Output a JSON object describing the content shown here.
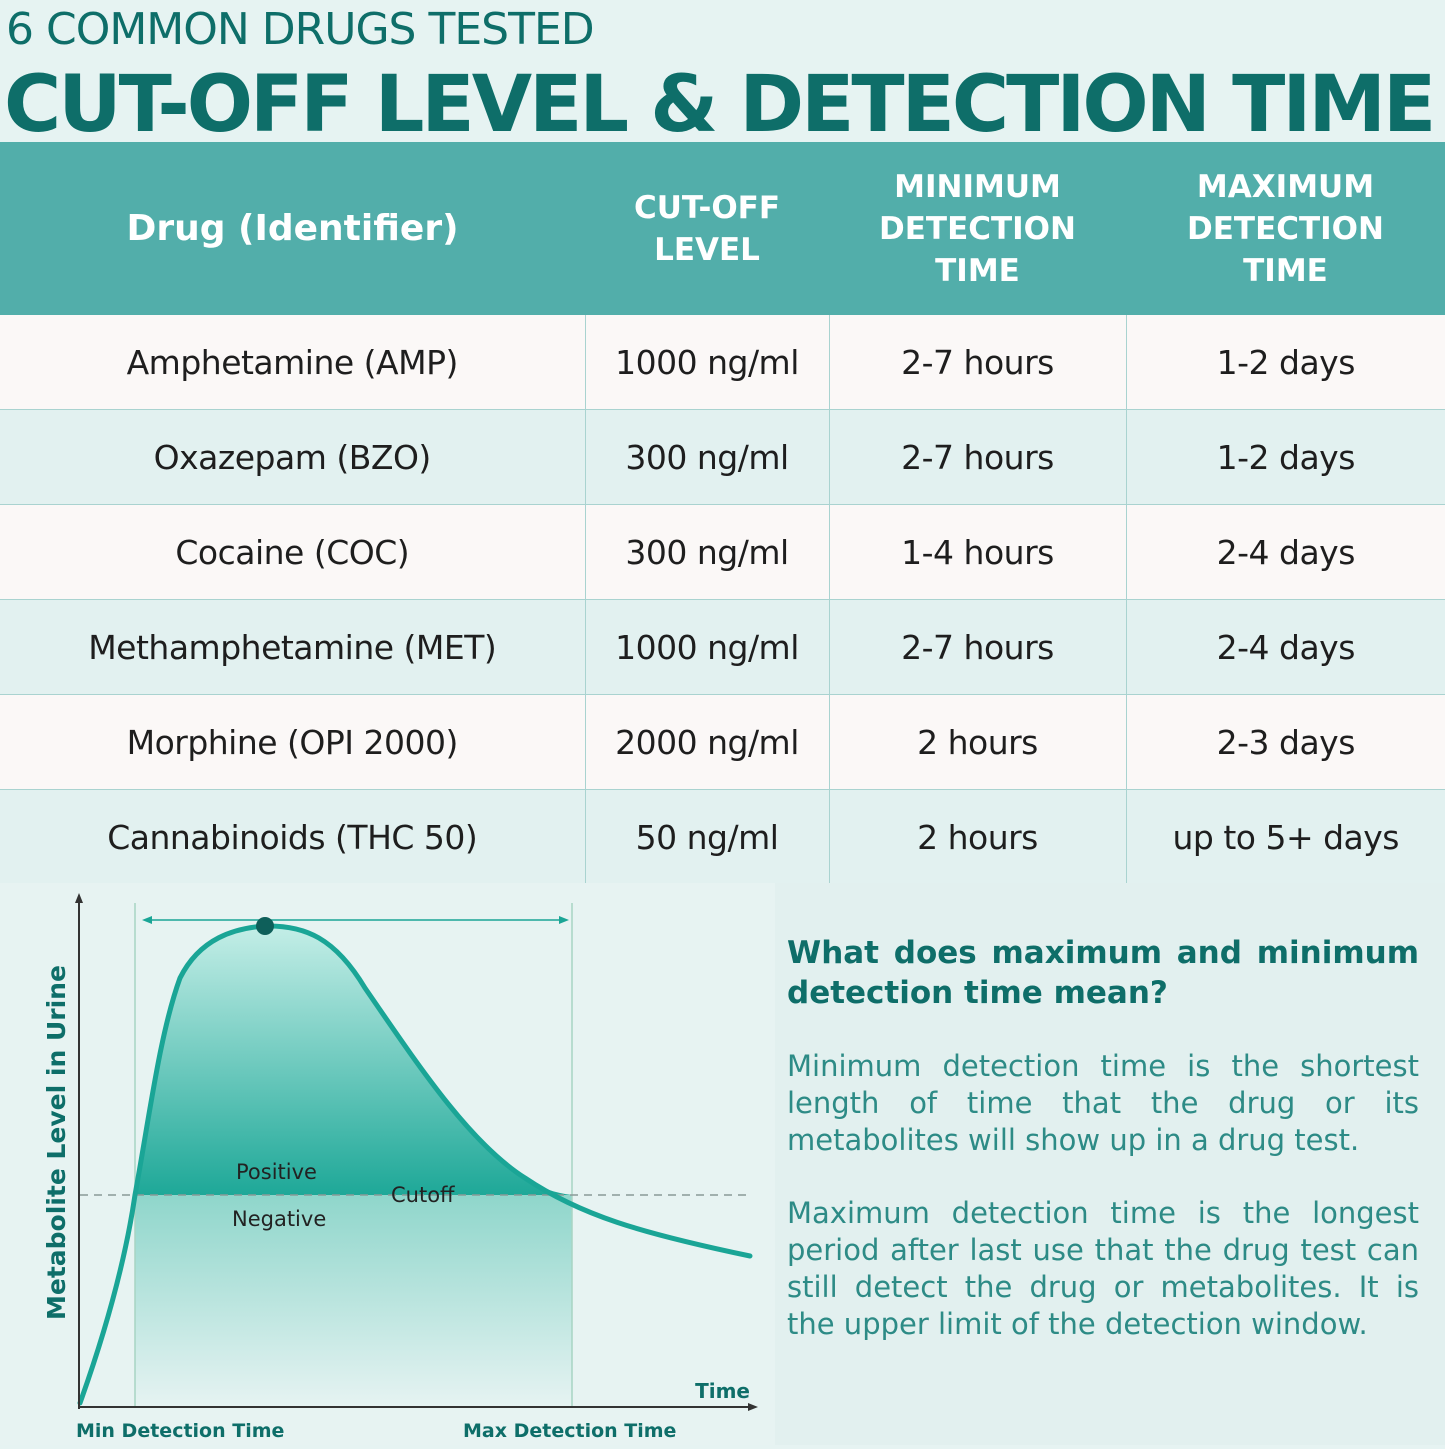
{
  "header": {
    "subtitle": "6 COMMON DRUGS TESTED",
    "title": "CUT-OFF LEVEL & DETECTION TIME"
  },
  "table": {
    "columns": [
      [
        "Drug (Identifier)"
      ],
      [
        "CUT-OFF",
        "LEVEL"
      ],
      [
        "MINIMUM",
        "DETECTION",
        "TIME"
      ],
      [
        "MAXIMUM",
        "DETECTION",
        "TIME"
      ]
    ],
    "rows": [
      {
        "drug": "Amphetamine (AMP)",
        "cutoff": "1000 ng/ml",
        "min": "2-7 hours",
        "max": "1-2 days"
      },
      {
        "drug": "Oxazepam (BZO)",
        "cutoff": "300 ng/ml",
        "min": "2-7 hours",
        "max": "1-2 days"
      },
      {
        "drug": "Cocaine (COC)",
        "cutoff": "300 ng/ml",
        "min": "1-4 hours",
        "max": "2-4 days"
      },
      {
        "drug": "Methamphetamine (MET)",
        "cutoff": "1000 ng/ml",
        "min": "2-7 hours",
        "max": "2-4 days"
      },
      {
        "drug": "Morphine (OPI 2000)",
        "cutoff": "2000 ng/ml",
        "min": "2 hours",
        "max": "2-3 days"
      },
      {
        "drug": "Cannabinoids (THC 50)",
        "cutoff": "50 ng/ml",
        "min": "2 hours",
        "max": "up to 5+ days"
      }
    ]
  },
  "diagram": {
    "y_axis_label": "Metabolite Level in Urine",
    "x_axis_label": "Time",
    "positive_label": "Positive",
    "negative_label": "Negative",
    "cutoff_label": "Cutoff",
    "min_label": "Min Detection Time",
    "max_label": "Max Detection Time",
    "curve_color": "#1aa596",
    "label_color": "#0e6e69"
  },
  "info": {
    "question": "What does maximum and minimum detection time mean?",
    "min_text": "Minimum detection time is the shortest length of time that the drug or its metabolites will show up in a drug test.",
    "max_text": "Maximum detection time is the longest period after last use that the drug test can still detect the drug or metabolites. It is the upper limit of the detection window."
  }
}
